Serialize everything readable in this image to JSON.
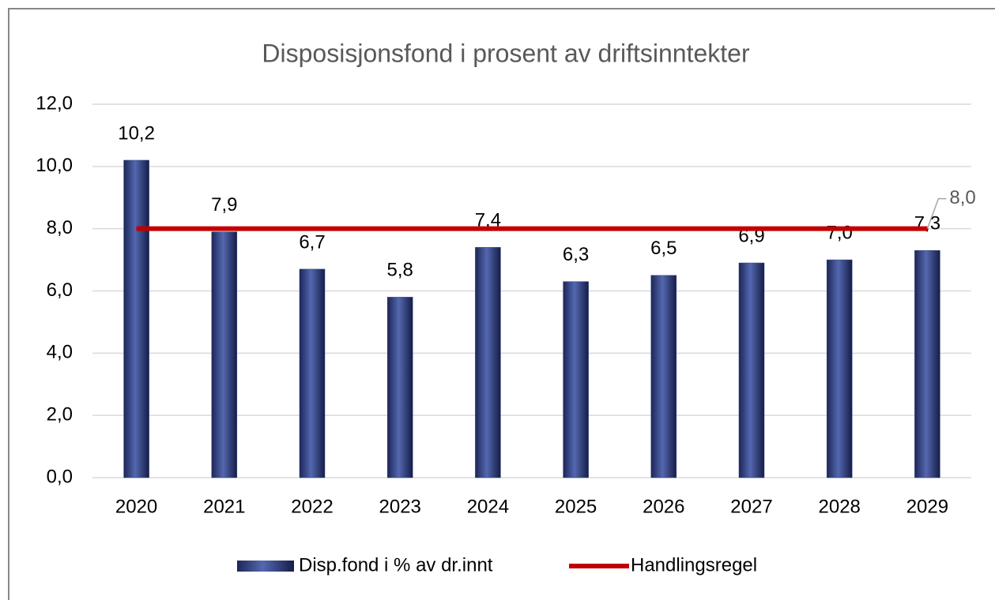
{
  "chart_data": {
    "type": "bar",
    "title": "Disposisjonsfond i prosent av driftsinntekter",
    "categories": [
      "2020",
      "2021",
      "2022",
      "2023",
      "2024",
      "2025",
      "2026",
      "2027",
      "2028",
      "2029"
    ],
    "series": [
      {
        "name": "Disp.fond i % av dr.innt",
        "type": "bar",
        "color": "#2f4484",
        "values": [
          10.2,
          7.9,
          6.7,
          5.8,
          7.4,
          6.3,
          6.5,
          6.9,
          7.0,
          7.3
        ],
        "value_labels": [
          "10,2",
          "7,9",
          "6,7",
          "5,8",
          "7,4",
          "6,3",
          "6,5",
          "6,9",
          "7,0",
          "7,3"
        ]
      },
      {
        "name": "Handlingsregel",
        "type": "line",
        "color": "#c00000",
        "values": [
          8.0,
          8.0,
          8.0,
          8.0,
          8.0,
          8.0,
          8.0,
          8.0,
          8.0,
          8.0
        ],
        "value_labels": [
          null,
          null,
          null,
          null,
          null,
          null,
          null,
          null,
          null,
          "8,0"
        ]
      }
    ],
    "ylim": [
      0,
      12
    ],
    "yticks": [
      {
        "value": 0,
        "label": "0,0"
      },
      {
        "value": 2,
        "label": "2,0"
      },
      {
        "value": 4,
        "label": "4,0"
      },
      {
        "value": 6,
        "label": "6,0"
      },
      {
        "value": 8,
        "label": "8,0"
      },
      {
        "value": 10,
        "label": "10,0"
      },
      {
        "value": 12,
        "label": "12,0"
      }
    ],
    "grid": true,
    "legend": "bottom"
  }
}
